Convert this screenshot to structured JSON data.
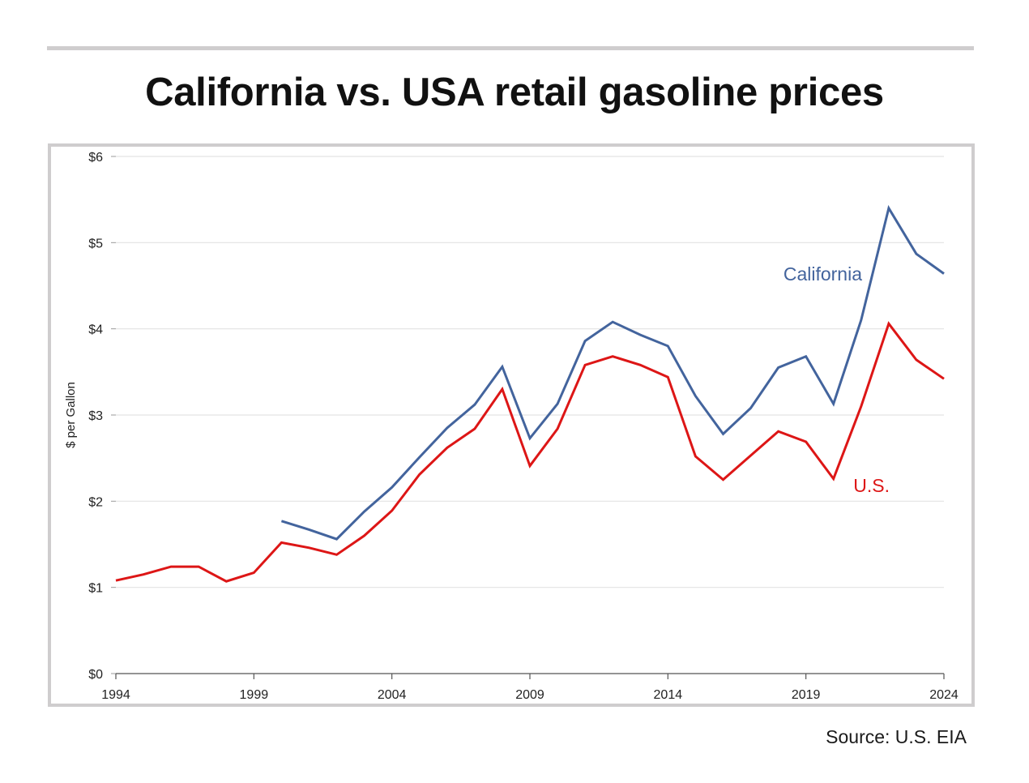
{
  "page": {
    "title": "California vs. USA retail gasoline prices",
    "source": "Source: U.S. EIA"
  },
  "colors": {
    "california": "#43649d",
    "us": "#dd1616",
    "grid": "#e3e3e3",
    "axis": "#222222"
  },
  "chart_data": {
    "type": "line",
    "title": "California vs. USA retail gasoline prices",
    "xlabel": "",
    "ylabel": "$ per Gallon",
    "xlim": [
      1994,
      2024
    ],
    "ylim": [
      0,
      6
    ],
    "x_ticks": [
      "1994",
      "1999",
      "2004",
      "2009",
      "2014",
      "2019",
      "2024"
    ],
    "y_ticks": [
      "$0",
      "$1",
      "$2",
      "$3",
      "$4",
      "$5",
      "$6"
    ],
    "grid": "horizontal",
    "series": [
      {
        "name": "California",
        "color": "#43649d",
        "x": [
          2000,
          2001,
          2002,
          2003,
          2004,
          2005,
          2006,
          2007,
          2008,
          2009,
          2010,
          2011,
          2012,
          2013,
          2014,
          2015,
          2016,
          2017,
          2018,
          2019,
          2020,
          2021,
          2022,
          2023,
          2024
        ],
        "values": [
          1.77,
          1.67,
          1.56,
          1.88,
          2.16,
          2.51,
          2.85,
          3.12,
          3.56,
          2.73,
          3.13,
          3.86,
          4.08,
          3.93,
          3.8,
          3.22,
          2.78,
          3.08,
          3.55,
          3.68,
          3.13,
          4.1,
          5.4,
          4.87,
          4.64
        ]
      },
      {
        "name": "U.S.",
        "color": "#dd1616",
        "x": [
          1994,
          1995,
          1996,
          1997,
          1998,
          1999,
          2000,
          2001,
          2002,
          2003,
          2004,
          2005,
          2006,
          2007,
          2008,
          2009,
          2010,
          2011,
          2012,
          2013,
          2014,
          2015,
          2016,
          2017,
          2018,
          2019,
          2020,
          2021,
          2022,
          2023,
          2024
        ],
        "values": [
          1.08,
          1.15,
          1.24,
          1.24,
          1.07,
          1.17,
          1.52,
          1.46,
          1.38,
          1.6,
          1.89,
          2.31,
          2.62,
          2.84,
          3.3,
          2.41,
          2.84,
          3.58,
          3.68,
          3.58,
          3.44,
          2.52,
          2.25,
          2.53,
          2.81,
          2.69,
          2.26,
          3.1,
          4.06,
          3.64,
          3.42
        ]
      }
    ],
    "series_labels": [
      {
        "text": "California",
        "series": 0
      },
      {
        "text": "U.S.",
        "series": 1
      }
    ]
  }
}
